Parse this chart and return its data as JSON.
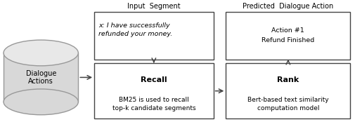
{
  "figsize": [
    5.06,
    1.84
  ],
  "dpi": 100,
  "bg_color": "#ffffff",
  "title_input": "Input  Segment",
  "title_predicted": "Predicted  Dialogue Action",
  "cylinder_label": "Dialogue\nActions",
  "input_box_text_italic": "x",
  "input_box_text_normal": ": I have successfully\nrefunded your money.",
  "predicted_box_text": "Action #1\nRefund Finished",
  "recall_box_title": "Recall",
  "recall_box_text": "BM25 is used to recall\ntop-k candidate segments",
  "rank_box_title": "Rank",
  "rank_box_text": "Bert-based text similarity\ncomputation model",
  "box_edge_color": "#444444",
  "box_fill": "#ffffff",
  "arrow_color": "#444444",
  "text_color": "#000000",
  "cylinder_fill": "#d8d8d8",
  "cylinder_edge": "#999999"
}
